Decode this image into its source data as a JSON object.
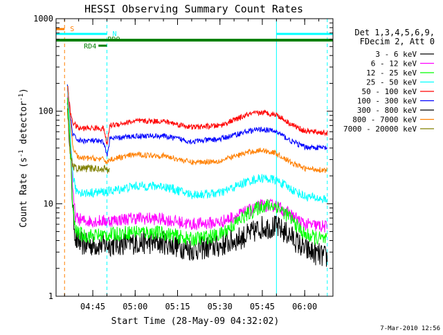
{
  "chart_data": {
    "type": "line",
    "title": "HESSI Observing Summary Count Rates",
    "xlabel": "Start Time (28-May-09 04:32:02)",
    "ylabel_parts": [
      "Count Rate (s",
      "-1",
      " detector",
      "-1",
      ")"
    ],
    "y_scale": "log",
    "ylim": [
      1,
      1000
    ],
    "xlim_minutes": [
      "04:32",
      "06:10"
    ],
    "x_ticks": [
      "04:45",
      "05:00",
      "05:15",
      "05:30",
      "05:45",
      "06:00"
    ],
    "y_ticks": [
      "1",
      "10",
      "100",
      "1000"
    ],
    "legend_header": [
      "Det 1,3,4,5,6,9,",
      "FDecim 2, Att 0"
    ],
    "legend_position": "right",
    "footer_date": "7-Mar-2010 12:56",
    "flags": {
      "saa": {
        "label": "S",
        "color": "#ff7f00",
        "start": "04:32",
        "end": "04:35"
      },
      "night": {
        "label": "N",
        "color": "#00ffff",
        "segments": [
          [
            "04:32",
            "04:50"
          ],
          [
            "05:50",
            "06:10"
          ]
        ]
      },
      "rdo": {
        "label": "RDO",
        "color": "#008000",
        "start": "04:32",
        "end": "06:10"
      },
      "rd4": {
        "label": "RD4",
        "color": "#008000",
        "start": "04:47",
        "end": "04:50"
      }
    },
    "vlines": [
      {
        "time": "04:35",
        "color": "#ff7f00",
        "style": "dashed"
      },
      {
        "time": "04:50",
        "color": "#00ffff",
        "style": "dashed"
      },
      {
        "time": "05:50",
        "color": "#00ffff",
        "style": "solid"
      },
      {
        "time": "06:08",
        "color": "#00ffff",
        "style": "dashed"
      }
    ],
    "series": [
      {
        "name": "3 - 6 keV",
        "color": "#000000",
        "noise": 0.13,
        "points": [
          [
            "04:36",
            150
          ],
          [
            "04:37",
            40
          ],
          [
            "04:38",
            8
          ],
          [
            "04:39",
            4
          ],
          [
            "04:42",
            3.6
          ],
          [
            "04:50",
            3.6
          ],
          [
            "05:00",
            3.8
          ],
          [
            "05:10",
            3.8
          ],
          [
            "05:20",
            3.2
          ],
          [
            "05:30",
            3.5
          ],
          [
            "05:40",
            4.6
          ],
          [
            "05:45",
            5.6
          ],
          [
            "05:50",
            5.6
          ],
          [
            "05:55",
            4.5
          ],
          [
            "06:00",
            3.2
          ],
          [
            "06:08",
            2.6
          ]
        ]
      },
      {
        "name": "6 - 12 keV",
        "color": "#ff00ff",
        "noise": 0.07,
        "points": [
          [
            "04:36",
            170
          ],
          [
            "04:37",
            60
          ],
          [
            "04:38",
            12
          ],
          [
            "04:39",
            7
          ],
          [
            "04:42",
            6.5
          ],
          [
            "04:50",
            6.5
          ],
          [
            "05:00",
            7
          ],
          [
            "05:10",
            6.8
          ],
          [
            "05:20",
            6
          ],
          [
            "05:30",
            6.3
          ],
          [
            "05:40",
            8.3
          ],
          [
            "05:45",
            9.6
          ],
          [
            "05:50",
            9.5
          ],
          [
            "05:55",
            7.6
          ],
          [
            "06:00",
            6
          ],
          [
            "06:08",
            5.6
          ]
        ]
      },
      {
        "name": "12 - 25 keV",
        "color": "#00ff00",
        "noise": 0.08,
        "points": [
          [
            "04:36",
            150
          ],
          [
            "04:37",
            40
          ],
          [
            "04:38",
            8
          ],
          [
            "04:39",
            5
          ],
          [
            "04:42",
            4.5
          ],
          [
            "04:50",
            4.6
          ],
          [
            "05:00",
            5
          ],
          [
            "05:10",
            4.8
          ],
          [
            "05:20",
            4.1
          ],
          [
            "05:30",
            4.6
          ],
          [
            "05:40",
            7.8
          ],
          [
            "05:45",
            9.5
          ],
          [
            "05:50",
            9.5
          ],
          [
            "05:55",
            7
          ],
          [
            "06:00",
            4.6
          ],
          [
            "06:08",
            4
          ]
        ]
      },
      {
        "name": "25 - 50 keV",
        "color": "#00ffff",
        "noise": 0.05,
        "points": [
          [
            "04:36",
            180
          ],
          [
            "04:37",
            60
          ],
          [
            "04:38",
            20
          ],
          [
            "04:39",
            14
          ],
          [
            "04:42",
            13
          ],
          [
            "04:50",
            13.5
          ],
          [
            "05:00",
            15.5
          ],
          [
            "05:10",
            15.5
          ],
          [
            "05:20",
            12.5
          ],
          [
            "05:30",
            13
          ],
          [
            "05:40",
            17.5
          ],
          [
            "05:45",
            19
          ],
          [
            "05:50",
            18
          ],
          [
            "05:55",
            14.5
          ],
          [
            "06:00",
            12
          ],
          [
            "06:08",
            11
          ]
        ]
      },
      {
        "name": "50 - 100 keV",
        "color": "#ff0000",
        "noise": 0.03,
        "points": [
          [
            "04:36",
            195
          ],
          [
            "04:37",
            100
          ],
          [
            "04:38",
            75
          ],
          [
            "04:40",
            65
          ],
          [
            "04:45",
            66
          ],
          [
            "04:49",
            65
          ],
          [
            "04:50",
            42
          ],
          [
            "04:51",
            70
          ],
          [
            "05:00",
            78
          ],
          [
            "05:10",
            78
          ],
          [
            "05:20",
            67
          ],
          [
            "05:30",
            70
          ],
          [
            "05:40",
            92
          ],
          [
            "05:45",
            97
          ],
          [
            "05:50",
            92
          ],
          [
            "05:55",
            73
          ],
          [
            "06:00",
            61
          ],
          [
            "06:08",
            58
          ]
        ]
      },
      {
        "name": "100 - 300 keV",
        "color": "#0000ff",
        "noise": 0.03,
        "points": [
          [
            "04:36",
            190
          ],
          [
            "04:37",
            90
          ],
          [
            "04:38",
            55
          ],
          [
            "04:40",
            48
          ],
          [
            "04:45",
            48
          ],
          [
            "04:49",
            46
          ],
          [
            "04:50",
            32
          ],
          [
            "04:51",
            50
          ],
          [
            "05:00",
            54
          ],
          [
            "05:10",
            54
          ],
          [
            "05:20",
            47
          ],
          [
            "05:30",
            50
          ],
          [
            "05:40",
            61
          ],
          [
            "05:45",
            64
          ],
          [
            "05:50",
            60
          ],
          [
            "05:55",
            48
          ],
          [
            "06:00",
            41
          ],
          [
            "06:08",
            40
          ]
        ]
      },
      {
        "name": "300 - 800 keV",
        "color": "#000000",
        "noise": 0,
        "points": []
      },
      {
        "name": "800 - 7000 keV",
        "color": "#ff7f00",
        "noise": 0.03,
        "points": [
          [
            "04:36",
            190
          ],
          [
            "04:37",
            80
          ],
          [
            "04:38",
            40
          ],
          [
            "04:40",
            31
          ],
          [
            "04:45",
            31
          ],
          [
            "04:49",
            30
          ],
          [
            "04:50",
            28
          ],
          [
            "04:51",
            30
          ],
          [
            "05:00",
            34
          ],
          [
            "05:10",
            33
          ],
          [
            "05:20",
            28
          ],
          [
            "05:30",
            29
          ],
          [
            "05:40",
            36
          ],
          [
            "05:45",
            38
          ],
          [
            "05:50",
            35
          ],
          [
            "05:55",
            28
          ],
          [
            "06:00",
            24
          ],
          [
            "06:08",
            23
          ]
        ]
      },
      {
        "name": "7000 - 20000 keV",
        "color": "#808000",
        "noise": 0.04,
        "points": [
          [
            "04:36",
            100
          ],
          [
            "04:37",
            35
          ],
          [
            "04:38",
            25
          ],
          [
            "04:40",
            24
          ],
          [
            "04:45",
            24
          ],
          [
            "04:49",
            24
          ],
          [
            "04:50",
            23
          ],
          [
            "04:51",
            24
          ]
        ]
      }
    ]
  }
}
